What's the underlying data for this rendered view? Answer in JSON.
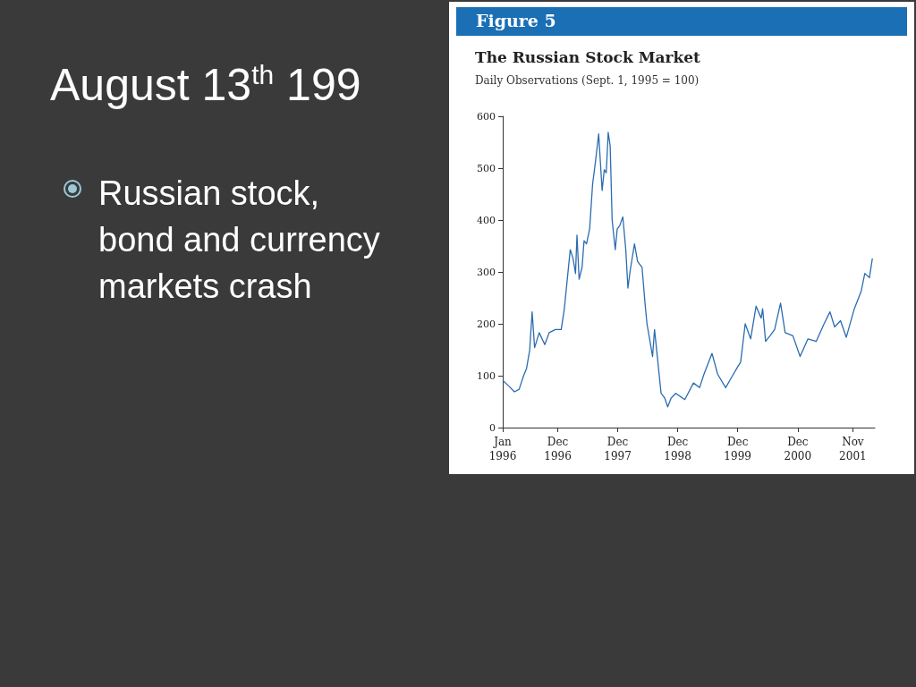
{
  "chart_data": {
    "type": "line",
    "title": "The Russian Stock Market",
    "subtitle": "Daily Observations (Sept. 1, 1995 = 100)",
    "annotations": [
      "Figure 5",
      "August 13$^{th}$ 199",
      "Russian stock, bond and currency markets crash"
    ],
    "x": [
      "1996-01-01",
      "1996-02-07",
      "1996-03-12",
      "1996-04-10",
      "1996-05-07",
      "1996-05-25",
      "1996-06-13",
      "1996-06-28",
      "1996-07-13",
      "1996-08-10",
      "1996-09-13",
      "1996-10-10",
      "1996-11-16",
      "1996-12-22",
      "1997-01-10",
      "1997-01-28",
      "1997-02-15",
      "1997-03-04",
      "1997-03-19",
      "1997-03-28",
      "1997-04-10",
      "1997-04-28",
      "1997-05-10",
      "1997-05-25",
      "1997-06-13",
      "1997-07-01",
      "1997-07-19",
      "1997-08-07",
      "1997-08-28",
      "1997-09-10",
      "1997-09-22",
      "1997-10-04",
      "1997-10-16",
      "1997-10-28",
      "1997-11-16",
      "1997-11-28",
      "1997-12-13",
      "1998-01-01",
      "1998-01-19",
      "1998-02-01",
      "1998-02-15",
      "1998-03-13",
      "1998-04-01",
      "1998-04-28",
      "1998-05-16",
      "1998-05-28",
      "1998-06-13",
      "1998-07-01",
      "1998-07-13",
      "1998-07-28",
      "1998-08-22",
      "1998-09-13",
      "1998-10-01",
      "1998-10-22",
      "1998-11-19",
      "1999-01-13",
      "1999-03-07",
      "1999-04-13",
      "1999-05-10",
      "1999-06-28",
      "1999-08-01",
      "1999-09-19",
      "1999-10-25",
      "1999-12-01",
      "1999-12-19",
      "2000-01-16",
      "2000-02-18",
      "2000-03-22",
      "2000-04-22",
      "2000-05-01",
      "2000-05-19",
      "2000-06-15",
      "2000-07-13",
      "2000-08-18",
      "2000-09-15",
      "2000-11-01",
      "2000-12-15",
      "2001-02-01",
      "2001-03-23",
      "2001-05-10",
      "2001-06-15",
      "2001-07-13",
      "2001-08-18",
      "2001-09-22",
      "2001-11-10",
      "2001-12-22",
      "2002-01-13",
      "2002-02-10",
      "2002-02-28"
    ],
    "series": [
      {
        "color": "#2b6cb0",
        "values": [
          91,
          80,
          69,
          74,
          100,
          114,
          149,
          223,
          154,
          183,
          160,
          183,
          189,
          189,
          229,
          286,
          343,
          326,
          297,
          371,
          286,
          309,
          360,
          354,
          383,
          469,
          514,
          566,
          457,
          497,
          491,
          569,
          543,
          400,
          343,
          383,
          389,
          406,
          343,
          269,
          303,
          354,
          320,
          309,
          240,
          200,
          171,
          137,
          189,
          143,
          66,
          57,
          40,
          57,
          66,
          54,
          86,
          77,
          103,
          143,
          103,
          77,
          97,
          117,
          126,
          200,
          171,
          234,
          211,
          229,
          166,
          177,
          189,
          240,
          183,
          177,
          137,
          171,
          166,
          200,
          223,
          194,
          206,
          174,
          229,
          263,
          297,
          289,
          326
        ]
      }
    ],
    "xlim": [
      "1996-01-01",
      "2002-03-15"
    ],
    "xticks": [
      {
        "value": "1996-01-01",
        "label": "Jan\n1996"
      },
      {
        "value": "1996-12-01",
        "label": "Dec\n1996"
      },
      {
        "value": "1997-12-01",
        "label": "Dec\n1997"
      },
      {
        "value": "1998-12-01",
        "label": "Dec\n1998"
      },
      {
        "value": "1999-12-01",
        "label": "Dec\n1999"
      },
      {
        "value": "2000-12-01",
        "label": "Dec\n2000"
      },
      {
        "value": "2001-11-01",
        "label": "Nov\n2001"
      }
    ],
    "ylim": [
      0,
      600
    ],
    "yticks": [
      0,
      100,
      200,
      300,
      400,
      500,
      600
    ],
    "grid": false,
    "marker": "none",
    "line_style": "solid"
  }
}
